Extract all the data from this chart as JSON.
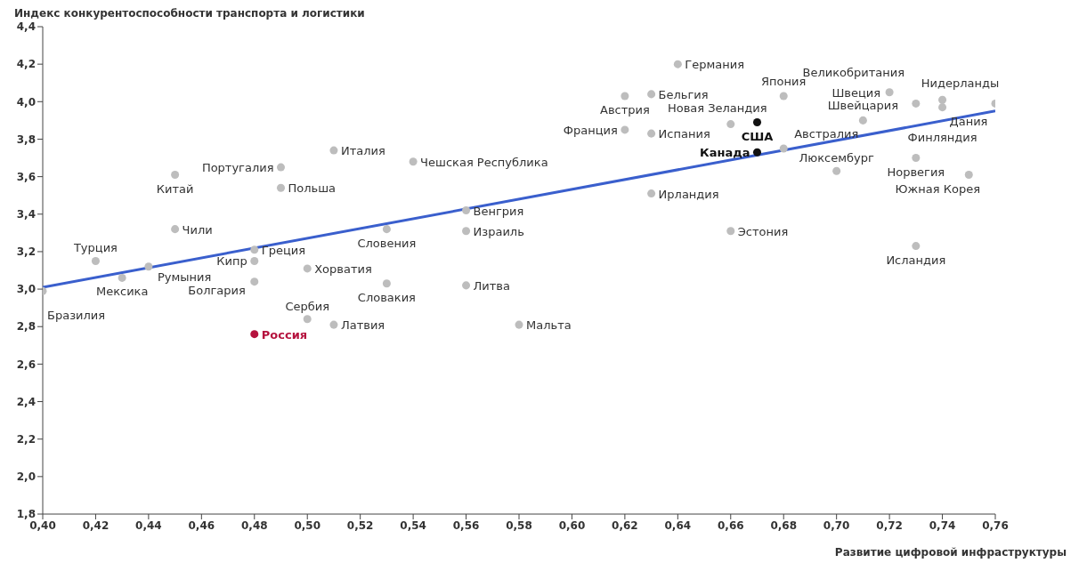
{
  "chart_data": {
    "type": "scatter",
    "xlabel": "Развитие цифровой инфраструктуры",
    "ylabel": "Индекс конкурентоспособности транспорта и логистики",
    "xlim": [
      0.4,
      0.76
    ],
    "xticks": [
      {
        "value": 0.4,
        "label": "0,40"
      },
      {
        "value": 0.42,
        "label": "0,42"
      },
      {
        "value": 0.44,
        "label": "0,44"
      },
      {
        "value": 0.46,
        "label": "0,46"
      },
      {
        "value": 0.48,
        "label": "0,48"
      },
      {
        "value": 0.5,
        "label": "0,50"
      },
      {
        "value": 0.52,
        "label": "0,52"
      },
      {
        "value": 0.54,
        "label": "0,54"
      },
      {
        "value": 0.56,
        "label": "0,56"
      },
      {
        "value": 0.58,
        "label": "0,58"
      },
      {
        "value": 0.6,
        "label": "0,60"
      },
      {
        "value": 0.62,
        "label": "0,62"
      },
      {
        "value": 0.64,
        "label": "0,64"
      },
      {
        "value": 0.66,
        "label": "0,66"
      },
      {
        "value": 0.68,
        "label": "0,68"
      },
      {
        "value": 0.7,
        "label": "0,70"
      },
      {
        "value": 0.72,
        "label": "0,72"
      },
      {
        "value": 0.74,
        "label": "0,74"
      },
      {
        "value": 0.76,
        "label": "0,76"
      }
    ],
    "ylim": [
      1.8,
      4.4
    ],
    "yticks": [
      {
        "value": 1.8,
        "label": "1,8"
      },
      {
        "value": 2.0,
        "label": "2,0"
      },
      {
        "value": 2.2,
        "label": "2,2"
      },
      {
        "value": 2.4,
        "label": "2,4"
      },
      {
        "value": 2.6,
        "label": "2,6"
      },
      {
        "value": 2.8,
        "label": "2,8"
      },
      {
        "value": 3.0,
        "label": "3,0"
      },
      {
        "value": 3.2,
        "label": "3,2"
      },
      {
        "value": 3.4,
        "label": "3,4"
      },
      {
        "value": 3.6,
        "label": "3,6"
      },
      {
        "value": 3.8,
        "label": "3,8"
      },
      {
        "value": 4.0,
        "label": "4,0"
      },
      {
        "value": 4.2,
        "label": "4,2"
      },
      {
        "value": 4.4,
        "label": "4,4"
      }
    ],
    "series": [
      {
        "marker": "circle",
        "color": "#bdbdbd",
        "x": [
          0.4,
          0.42,
          0.43,
          0.44,
          0.45,
          0.45,
          0.49,
          0.49,
          0.48,
          0.48,
          0.48,
          0.48,
          0.5,
          0.5,
          0.51,
          0.51,
          0.53,
          0.53,
          0.54,
          0.56,
          0.56,
          0.56,
          0.58,
          0.62,
          0.62,
          0.63,
          0.63,
          0.63,
          0.64,
          0.66,
          0.66,
          0.67,
          0.67,
          0.68,
          0.68,
          0.7,
          0.71,
          0.72,
          0.73,
          0.73,
          0.73,
          0.74,
          0.74,
          0.76,
          0.75
        ],
        "values": [
          2.99,
          3.15,
          3.06,
          3.12,
          3.61,
          3.32,
          3.65,
          3.54,
          3.15,
          3.21,
          3.04,
          2.76,
          2.84,
          3.11,
          3.74,
          2.81,
          3.32,
          3.03,
          3.68,
          3.42,
          3.31,
          3.02,
          2.81,
          4.03,
          3.85,
          4.04,
          3.83,
          3.51,
          4.2,
          3.88,
          3.31,
          3.89,
          3.73,
          4.03,
          3.75,
          3.63,
          3.9,
          4.05,
          3.99,
          3.7,
          3.23,
          4.01,
          3.97,
          3.99,
          3.61
        ],
        "colors": [
          "#bdbdbd",
          "#bdbdbd",
          "#bdbdbd",
          "#bdbdbd",
          "#bdbdbd",
          "#bdbdbd",
          "#bdbdbd",
          "#bdbdbd",
          "#bdbdbd",
          "#bdbdbd",
          "#bdbdbd",
          "#b5123e",
          "#bdbdbd",
          "#bdbdbd",
          "#bdbdbd",
          "#bdbdbd",
          "#bdbdbd",
          "#bdbdbd",
          "#bdbdbd",
          "#bdbdbd",
          "#bdbdbd",
          "#bdbdbd",
          "#bdbdbd",
          "#bdbdbd",
          "#bdbdbd",
          "#bdbdbd",
          "#bdbdbd",
          "#bdbdbd",
          "#bdbdbd",
          "#bdbdbd",
          "#bdbdbd",
          "#111111",
          "#111111",
          "#bdbdbd",
          "#bdbdbd",
          "#bdbdbd",
          "#bdbdbd",
          "#bdbdbd",
          "#bdbdbd",
          "#bdbdbd",
          "#bdbdbd",
          "#bdbdbd",
          "#bdbdbd",
          "#bdbdbd",
          "#bdbdbd"
        ]
      },
      {
        "type": "line",
        "marker": "none",
        "color": "#3a5fcd",
        "x": [
          0.4,
          0.76
        ],
        "values": [
          3.01,
          3.95
        ]
      }
    ],
    "annotations": [
      {
        "text": "Бразилия",
        "x": 0.4,
        "y": 2.99
      },
      {
        "text": "Турция",
        "x": 0.42,
        "y": 3.15
      },
      {
        "text": "Мексика",
        "x": 0.43,
        "y": 3.06
      },
      {
        "text": "Румыния",
        "x": 0.44,
        "y": 3.12
      },
      {
        "text": "Китай",
        "x": 0.45,
        "y": 3.61
      },
      {
        "text": "Чили",
        "x": 0.45,
        "y": 3.32
      },
      {
        "text": "Португалия",
        "x": 0.49,
        "y": 3.65
      },
      {
        "text": "Польша",
        "x": 0.49,
        "y": 3.54
      },
      {
        "text": "Кипр",
        "x": 0.48,
        "y": 3.15
      },
      {
        "text": "Греция",
        "x": 0.48,
        "y": 3.21
      },
      {
        "text": "Болгария",
        "x": 0.48,
        "y": 3.04
      },
      {
        "text": "Россия",
        "x": 0.48,
        "y": 2.76
      },
      {
        "text": "Сербия",
        "x": 0.5,
        "y": 2.84
      },
      {
        "text": "Хорватия",
        "x": 0.5,
        "y": 3.11
      },
      {
        "text": "Италия",
        "x": 0.51,
        "y": 3.74
      },
      {
        "text": "Латвия",
        "x": 0.51,
        "y": 2.81
      },
      {
        "text": "Словения",
        "x": 0.53,
        "y": 3.32
      },
      {
        "text": "Словакия",
        "x": 0.53,
        "y": 3.03
      },
      {
        "text": "Чешская Республика",
        "x": 0.54,
        "y": 3.68
      },
      {
        "text": "Венгрия",
        "x": 0.56,
        "y": 3.42
      },
      {
        "text": "Израиль",
        "x": 0.56,
        "y": 3.31
      },
      {
        "text": "Литва",
        "x": 0.56,
        "y": 3.02
      },
      {
        "text": "Мальта",
        "x": 0.58,
        "y": 2.81
      },
      {
        "text": "Австрия",
        "x": 0.62,
        "y": 4.03
      },
      {
        "text": "Франция",
        "x": 0.62,
        "y": 3.85
      },
      {
        "text": "Бельгия",
        "x": 0.63,
        "y": 4.04
      },
      {
        "text": "Испания",
        "x": 0.63,
        "y": 3.83
      },
      {
        "text": "Ирландия",
        "x": 0.63,
        "y": 3.51
      },
      {
        "text": "Германия",
        "x": 0.64,
        "y": 4.2
      },
      {
        "text": "Новая Зеландия",
        "x": 0.66,
        "y": 3.88
      },
      {
        "text": "Эстония",
        "x": 0.66,
        "y": 3.31
      },
      {
        "text": "США",
        "x": 0.67,
        "y": 3.89
      },
      {
        "text": "Канада",
        "x": 0.67,
        "y": 3.73
      },
      {
        "text": "Япония",
        "x": 0.68,
        "y": 4.03
      },
      {
        "text": "Австралия",
        "x": 0.68,
        "y": 3.75
      },
      {
        "text": "Люксембург",
        "x": 0.7,
        "y": 3.63
      },
      {
        "text": "Швейцария",
        "x": 0.71,
        "y": 3.9
      },
      {
        "text": "Швеция",
        "x": 0.72,
        "y": 4.05
      },
      {
        "text": "Великобритания",
        "x": 0.73,
        "y": 3.99
      },
      {
        "text": "Норвегия",
        "x": 0.73,
        "y": 3.7
      },
      {
        "text": "Исландия",
        "x": 0.73,
        "y": 3.23
      },
      {
        "text": "Нидерланды",
        "x": 0.74,
        "y": 4.01
      },
      {
        "text": "Финляндия",
        "x": 0.74,
        "y": 3.97
      },
      {
        "text": "Дания",
        "x": 0.76,
        "y": 3.99
      },
      {
        "text": "Южная Корея",
        "x": 0.75,
        "y": 3.61
      }
    ]
  }
}
